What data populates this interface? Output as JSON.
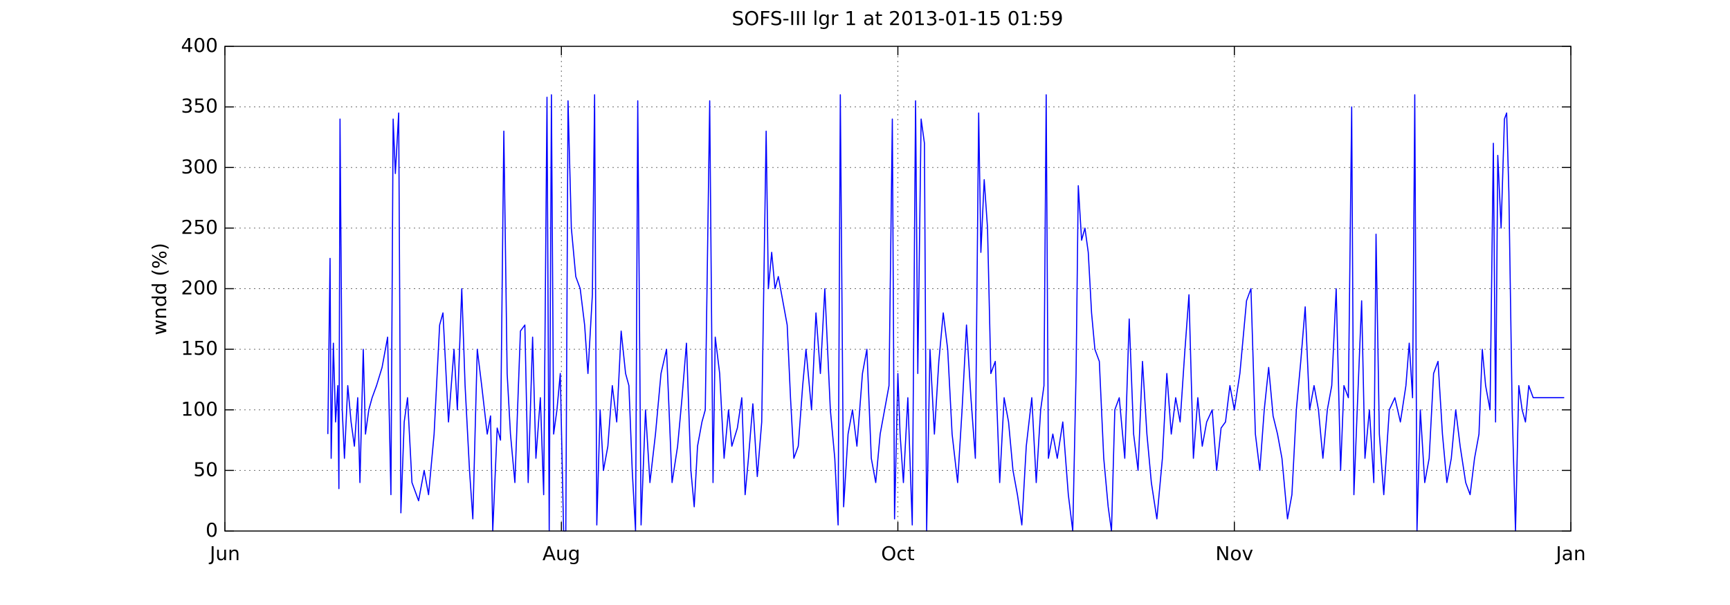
{
  "chart_data": {
    "type": "line",
    "title": "SOFS-III lgr 1 at 2013-01-15 01:59",
    "y_label": "wndd (%)",
    "color": "#0000ff",
    "grid": true,
    "xlim": [
      0,
      1216
    ],
    "xticks": [
      {
        "value": 0,
        "label": "Jun"
      },
      {
        "value": 304,
        "label": "Aug"
      },
      {
        "value": 608,
        "label": "Oct"
      },
      {
        "value": 912,
        "label": "Nov"
      },
      {
        "value": 1216,
        "label": "Jan"
      }
    ],
    "ylim": [
      0,
      400
    ],
    "yticks": [
      0,
      50,
      100,
      150,
      200,
      250,
      300,
      350,
      400
    ],
    "x": [
      93,
      95,
      96,
      98,
      100,
      102,
      103,
      104,
      106,
      108,
      111,
      114,
      117,
      120,
      122,
      125,
      127,
      130,
      133,
      137,
      142,
      147,
      150,
      152,
      154,
      157,
      159,
      162,
      165,
      169,
      175,
      180,
      184,
      189,
      194,
      197,
      202,
      207,
      210,
      214,
      217,
      221,
      224,
      228,
      232,
      237,
      240,
      242,
      246,
      249,
      252,
      255,
      258,
      262,
      267,
      271,
      274,
      278,
      281,
      285,
      288,
      291,
      293,
      295,
      297,
      300,
      303,
      306,
      308,
      310,
      313,
      317,
      321,
      325,
      328,
      332,
      334,
      336,
      339,
      342,
      346,
      350,
      354,
      358,
      362,
      365,
      368,
      371,
      373,
      376,
      380,
      384,
      389,
      394,
      399,
      404,
      409,
      413,
      417,
      421,
      424,
      427,
      431,
      434,
      438,
      441,
      443,
      447,
      451,
      455,
      458,
      463,
      467,
      470,
      473,
      477,
      481,
      485,
      489,
      491,
      494,
      497,
      500,
      504,
      508,
      511,
      514,
      518,
      522,
      525,
      530,
      534,
      538,
      542,
      547,
      551,
      554,
      556,
      559,
      563,
      567,
      571,
      576,
      580,
      584,
      588,
      592,
      596,
      600,
      603,
      605,
      608,
      610,
      613,
      617,
      621,
      624,
      626,
      629,
      632,
      634,
      637,
      641,
      645,
      649,
      653,
      657,
      662,
      666,
      670,
      674,
      678,
      681,
      683,
      686,
      689,
      692,
      696,
      700,
      704,
      708,
      712,
      716,
      720,
      724,
      729,
      733,
      737,
      740,
      742,
      744,
      748,
      752,
      757,
      762,
      766,
      769,
      771,
      774,
      777,
      780,
      783,
      786,
      790,
      794,
      798,
      801,
      804,
      808,
      813,
      817,
      821,
      825,
      829,
      833,
      837,
      842,
      847,
      851,
      855,
      859,
      863,
      867,
      871,
      875,
      879,
      883,
      887,
      892,
      896,
      900,
      904,
      908,
      912,
      917,
      923,
      927,
      931,
      935,
      939,
      943,
      947,
      951,
      955,
      960,
      964,
      968,
      972,
      976,
      980,
      984,
      988,
      992,
      996,
      1000,
      1004,
      1008,
      1011,
      1015,
      1018,
      1020,
      1023,
      1027,
      1030,
      1034,
      1038,
      1040,
      1043,
      1047,
      1052,
      1057,
      1062,
      1067,
      1070,
      1073,
      1075,
      1077,
      1080,
      1084,
      1088,
      1092,
      1096,
      1100,
      1104,
      1108,
      1112,
      1116,
      1121,
      1125,
      1129,
      1133,
      1136,
      1139,
      1143,
      1146,
      1148,
      1150,
      1153,
      1156,
      1158,
      1160,
      1163,
      1166,
      1169,
      1172,
      1175,
      1178,
      1182,
      1210
    ],
    "values": [
      80,
      225,
      60,
      155,
      90,
      120,
      35,
      340,
      100,
      60,
      120,
      90,
      70,
      110,
      40,
      150,
      80,
      100,
      110,
      120,
      135,
      160,
      30,
      340,
      295,
      345,
      15,
      90,
      110,
      40,
      25,
      50,
      30,
      80,
      170,
      180,
      90,
      150,
      100,
      200,
      120,
      50,
      10,
      150,
      120,
      80,
      95,
      0,
      85,
      75,
      330,
      130,
      80,
      40,
      165,
      170,
      40,
      160,
      60,
      110,
      30,
      358,
      0,
      360,
      80,
      100,
      130,
      0,
      0,
      355,
      250,
      210,
      200,
      170,
      130,
      195,
      360,
      5,
      100,
      50,
      70,
      120,
      90,
      165,
      130,
      120,
      50,
      0,
      355,
      5,
      100,
      40,
      80,
      130,
      150,
      40,
      70,
      110,
      155,
      50,
      20,
      70,
      90,
      100,
      355,
      40,
      160,
      130,
      60,
      100,
      70,
      85,
      110,
      30,
      60,
      105,
      45,
      90,
      330,
      200,
      230,
      200,
      210,
      190,
      170,
      110,
      60,
      70,
      120,
      150,
      100,
      180,
      130,
      200,
      100,
      60,
      5,
      360,
      20,
      80,
      100,
      70,
      130,
      150,
      60,
      40,
      80,
      100,
      120,
      340,
      10,
      130,
      80,
      40,
      110,
      5,
      355,
      130,
      340,
      320,
      0,
      150,
      80,
      140,
      180,
      150,
      80,
      40,
      100,
      170,
      110,
      60,
      345,
      230,
      290,
      250,
      130,
      140,
      40,
      110,
      90,
      50,
      30,
      5,
      70,
      110,
      40,
      100,
      120,
      360,
      60,
      80,
      60,
      90,
      30,
      0,
      130,
      285,
      240,
      250,
      230,
      180,
      150,
      140,
      60,
      20,
      0,
      100,
      110,
      60,
      175,
      80,
      50,
      140,
      80,
      40,
      10,
      60,
      130,
      80,
      110,
      90,
      145,
      195,
      60,
      110,
      70,
      90,
      100,
      50,
      85,
      90,
      120,
      100,
      130,
      190,
      200,
      80,
      50,
      100,
      135,
      95,
      80,
      60,
      10,
      30,
      100,
      140,
      185,
      100,
      120,
      100,
      60,
      100,
      120,
      200,
      50,
      120,
      110,
      350,
      30,
      100,
      190,
      60,
      100,
      40,
      245,
      80,
      30,
      100,
      110,
      90,
      120,
      155,
      110,
      360,
      0,
      100,
      40,
      60,
      130,
      140,
      80,
      40,
      60,
      100,
      70,
      40,
      30,
      60,
      80,
      150,
      120,
      100,
      320,
      90,
      310,
      250,
      340,
      345,
      280,
      100,
      0,
      120,
      100,
      90,
      120,
      110,
      110
    ]
  }
}
